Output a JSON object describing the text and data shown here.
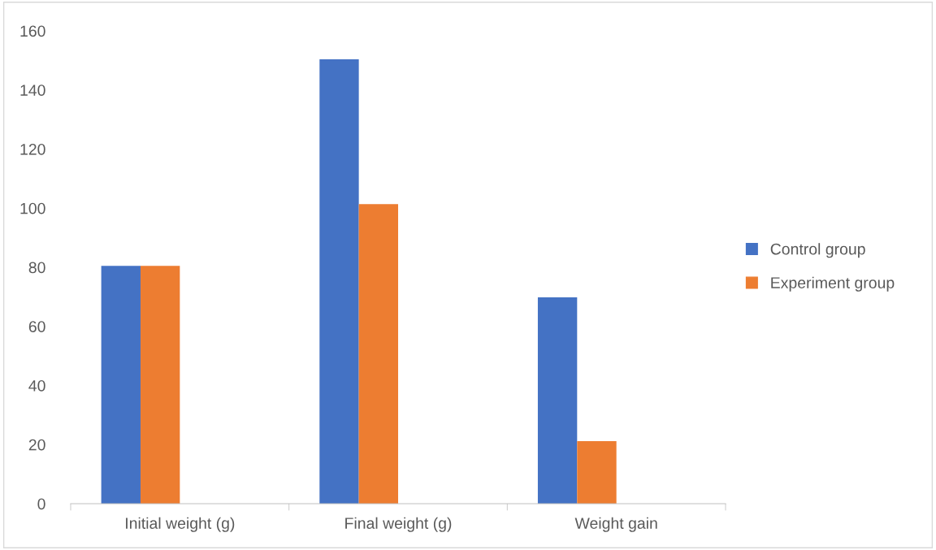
{
  "chart_data": {
    "type": "bar",
    "categories": [
      "Initial weight (g)",
      "Final weight (g)",
      "Weight gain"
    ],
    "series": [
      {
        "name": "Control group",
        "color": "#4472c4",
        "values": [
          80.5,
          150.4,
          69.8
        ]
      },
      {
        "name": "Experiment group",
        "color": "#ed7d31",
        "values": [
          80.5,
          101.4,
          21.2
        ]
      }
    ],
    "ylim": [
      0,
      160
    ],
    "yticks": [
      0,
      20,
      40,
      60,
      80,
      100,
      120,
      140,
      160
    ],
    "legend": "right"
  }
}
